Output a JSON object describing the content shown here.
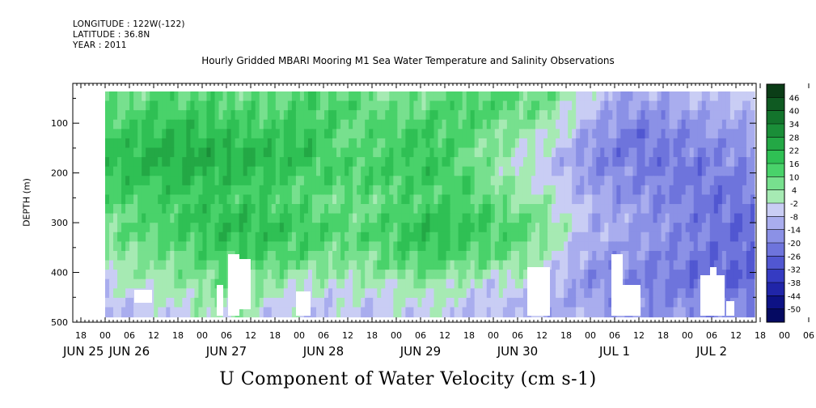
{
  "header": {
    "longitude": "LONGITUDE : 122W(-122)",
    "latitude": "LATITUDE : 36.8N",
    "year": "YEAR : 2011"
  },
  "chart_data": {
    "type": "heatmap",
    "title": "Hourly Gridded MBARI Mooring M1 Sea Water Temperature and Salinity Observations",
    "subtitle": "U Component of Water Velocity (cm s-1)",
    "ylabel": "DEPTH (m)",
    "xlabel": "",
    "y_ticks": [
      100,
      200,
      300,
      400,
      500
    ],
    "ylim": [
      500,
      20
    ],
    "x_hour_labels": [
      "18",
      "00",
      "06",
      "12",
      "18",
      "00",
      "06",
      "12",
      "18",
      "00",
      "06",
      "12",
      "18",
      "00",
      "06",
      "12",
      "18",
      "00",
      "06",
      "12",
      "18",
      "00",
      "06",
      "12",
      "18",
      "00",
      "06",
      "12",
      "18",
      "00",
      "06",
      "12"
    ],
    "x_day_labels": [
      "JUN 25",
      "JUN 26",
      "JUN 27",
      "JUN 28",
      "JUN 29",
      "JUN 30",
      "JUL  1",
      "JUL  2"
    ],
    "x_day_label_hour_index": [
      0,
      2,
      6,
      10,
      14,
      18,
      22,
      26
    ],
    "colorbar": {
      "labels": [
        "46",
        "40",
        "34",
        "28",
        "22",
        "16",
        "10",
        "4",
        "-2",
        "-8",
        "-14",
        "-20",
        "-26",
        "-32",
        "-38",
        "-44",
        "-50"
      ],
      "colors": [
        "#0b3d17",
        "#0f5a22",
        "#13742c",
        "#1a8e38",
        "#23a845",
        "#2fc054",
        "#49d26a",
        "#77e08e",
        "#a6eab3",
        "#c9cdf4",
        "#a9adee",
        "#8b91e6",
        "#6e74dc",
        "#5157d1",
        "#353bc2",
        "#2025a8",
        "#0d1285",
        "#050a62"
      ]
    },
    "data_grid_note": "",
    "depth_rows": [
      20,
      40,
      60,
      80,
      100,
      120,
      140,
      160,
      180,
      200,
      220,
      240,
      260,
      280,
      300,
      320,
      340,
      360,
      380,
      400,
      420,
      440,
      460,
      480
    ],
    "time_key_hours": [
      0,
      12,
      24,
      36,
      48,
      60,
      72,
      84,
      96,
      108,
      120,
      132,
      144,
      156,
      168,
      180,
      192
    ],
    "u_values_cm_s": [
      [
        6,
        10,
        12,
        10,
        8,
        12,
        10,
        6,
        8,
        12,
        10,
        8,
        -6,
        -14,
        -10,
        -8,
        -6
      ],
      [
        8,
        12,
        14,
        12,
        10,
        14,
        12,
        8,
        10,
        14,
        10,
        6,
        -8,
        -16,
        -12,
        -10,
        -8
      ],
      [
        10,
        14,
        16,
        14,
        12,
        14,
        12,
        10,
        12,
        14,
        8,
        4,
        -10,
        -18,
        -16,
        -12,
        -10
      ],
      [
        12,
        16,
        18,
        16,
        14,
        16,
        10,
        12,
        14,
        12,
        6,
        2,
        -12,
        -20,
        -18,
        -14,
        -12
      ],
      [
        14,
        18,
        20,
        18,
        16,
        18,
        8,
        14,
        16,
        10,
        4,
        0,
        -14,
        -22,
        -20,
        -16,
        -14
      ],
      [
        16,
        20,
        22,
        20,
        18,
        18,
        8,
        14,
        16,
        10,
        2,
        -2,
        -16,
        -22,
        -20,
        -18,
        -16
      ],
      [
        16,
        22,
        24,
        22,
        20,
        18,
        10,
        14,
        16,
        8,
        2,
        -4,
        -18,
        -22,
        -20,
        -18,
        -16
      ],
      [
        18,
        22,
        24,
        22,
        20,
        16,
        12,
        14,
        18,
        8,
        0,
        -6,
        -18,
        -20,
        -22,
        -20,
        -18
      ],
      [
        18,
        20,
        22,
        20,
        18,
        14,
        14,
        14,
        18,
        10,
        0,
        -6,
        -16,
        -18,
        -22,
        -20,
        -18
      ],
      [
        16,
        18,
        20,
        18,
        16,
        12,
        12,
        14,
        16,
        12,
        2,
        -4,
        -14,
        -18,
        -20,
        -22,
        -20
      ],
      [
        14,
        16,
        18,
        16,
        14,
        10,
        10,
        12,
        14,
        12,
        4,
        -2,
        -14,
        -18,
        -20,
        -22,
        -22
      ],
      [
        12,
        14,
        16,
        16,
        14,
        10,
        8,
        10,
        14,
        12,
        6,
        0,
        -12,
        -16,
        -20,
        -22,
        -24
      ],
      [
        10,
        12,
        16,
        18,
        16,
        12,
        8,
        10,
        16,
        14,
        8,
        2,
        -10,
        -14,
        -18,
        -22,
        -24
      ],
      [
        8,
        12,
        16,
        20,
        18,
        14,
        8,
        12,
        18,
        16,
        10,
        4,
        -10,
        -14,
        -18,
        -22,
        -26
      ],
      [
        8,
        12,
        16,
        20,
        18,
        16,
        10,
        14,
        20,
        16,
        12,
        4,
        -10,
        -14,
        -18,
        -22,
        -26
      ],
      [
        6,
        10,
        14,
        18,
        18,
        14,
        10,
        14,
        20,
        14,
        12,
        2,
        -10,
        -14,
        -18,
        -22,
        -26
      ],
      [
        4,
        8,
        12,
        16,
        16,
        12,
        8,
        12,
        18,
        12,
        10,
        0,
        -12,
        -16,
        -18,
        -22,
        -26
      ],
      [
        2,
        6,
        10,
        14,
        14,
        10,
        6,
        10,
        16,
        10,
        8,
        -2,
        -14,
        -16,
        -20,
        -22,
        -26
      ],
      [
        0,
        4,
        8,
        12,
        10,
        6,
        4,
        8,
        12,
        6,
        4,
        -4,
        -16,
        -18,
        -20,
        -24,
        -26
      ],
      [
        -2,
        2,
        6,
        10,
        6,
        2,
        2,
        4,
        8,
        2,
        0,
        -6,
        -16,
        -18,
        -22,
        -24,
        -26
      ],
      [
        -4,
        0,
        4,
        8,
        2,
        -2,
        0,
        0,
        4,
        -2,
        -4,
        -8,
        -16,
        -20,
        -22,
        -24,
        -24
      ],
      [
        -6,
        -2,
        2,
        6,
        0,
        -4,
        -2,
        -2,
        2,
        -4,
        -6,
        -10,
        -14,
        -20,
        -20,
        -22,
        -22
      ],
      [
        -8,
        -4,
        0,
        4,
        -2,
        -6,
        -4,
        -4,
        0,
        -6,
        -8,
        -10,
        -14,
        -18,
        -18,
        -20,
        -20
      ],
      [
        -8,
        -6,
        -2,
        2,
        -4,
        -6,
        -6,
        -6,
        -2,
        -8,
        -8,
        -10,
        -12,
        -16,
        -16,
        -18,
        -18
      ]
    ],
    "missing_regions_note": ""
  }
}
